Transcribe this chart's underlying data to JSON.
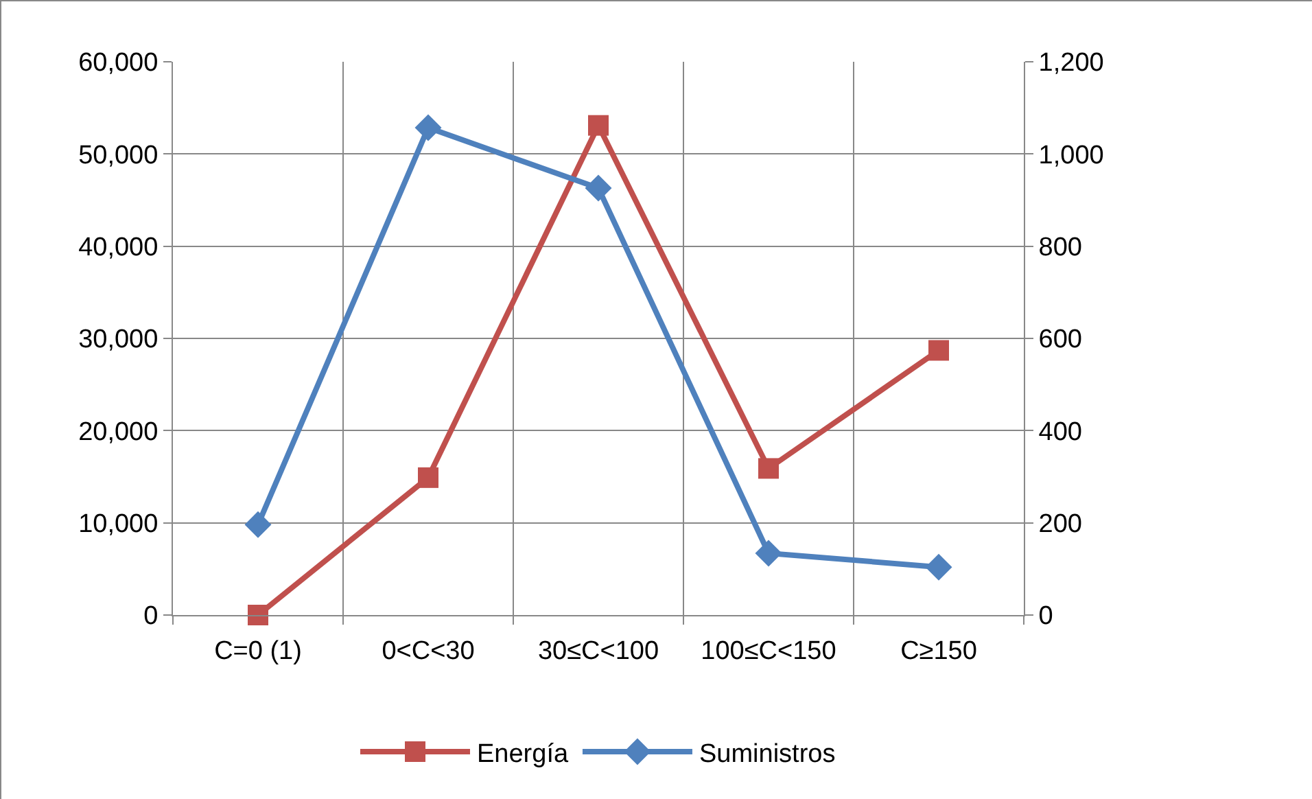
{
  "chart_data": {
    "type": "line",
    "categories": [
      "C=0 (1)",
      "0<C<30",
      "30≤C<100",
      "100≤C<150",
      "C≥150"
    ],
    "series": [
      {
        "name": "Energía",
        "color": "#c0504d",
        "marker": "square",
        "values": [
          0,
          14900,
          53100,
          15900,
          28700
        ]
      },
      {
        "name": "Suministros",
        "color": "#4f81bd",
        "marker": "diamond",
        "axis": "y2",
        "values": [
          196,
          1057,
          926,
          134,
          104
        ]
      }
    ],
    "ylim": [
      0,
      60000
    ],
    "yticks": [
      0,
      {
        "value": 10000,
        "label": "10,000"
      },
      {
        "value": 20000,
        "label": "20,000"
      },
      {
        "value": 30000,
        "label": "30,000"
      },
      {
        "value": 40000,
        "label": "40,000"
      },
      {
        "value": 50000,
        "label": "50,000"
      },
      {
        "value": 60000,
        "label": "60,000"
      }
    ],
    "y2lim": [
      0,
      1200
    ],
    "y2ticks": [
      0,
      200,
      400,
      600,
      800,
      {
        "value": 1000,
        "label": "1,000"
      },
      {
        "value": 1200,
        "label": "1,200"
      }
    ],
    "grid": true,
    "legend": "bottom",
    "line_style": "solid"
  }
}
